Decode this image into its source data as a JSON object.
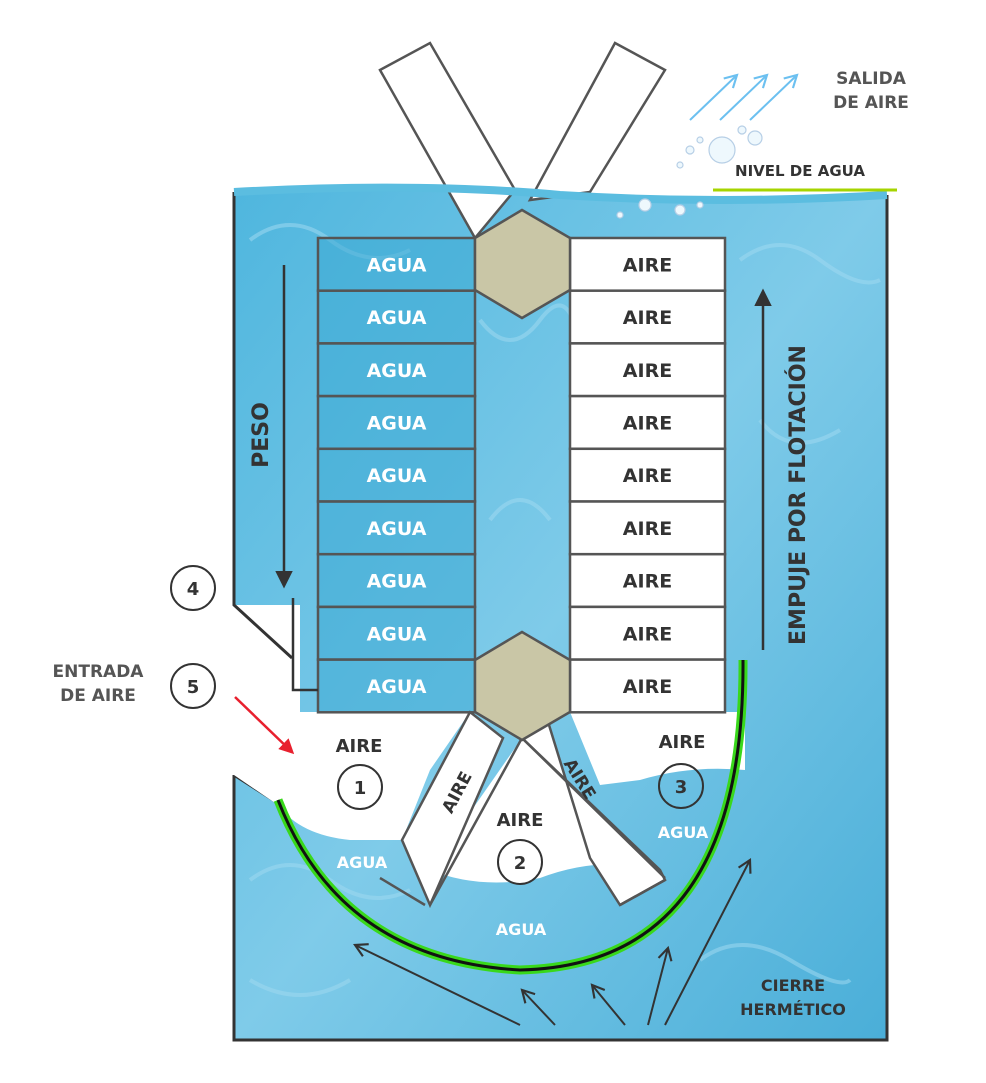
{
  "labels": {
    "salida_aire": [
      "SALIDA",
      "DE AIRE"
    ],
    "nivel_agua": "NIVEL DE AGUA",
    "peso": "PESO",
    "empuje": "EMPUJE POR FLOTACIÓN",
    "entrada_aire": [
      "ENTRADA",
      "DE AIRE"
    ],
    "cierre": [
      "CIERRE",
      "HERMÉTICO"
    ]
  },
  "left_cells": [
    "AGUA",
    "AGUA",
    "AGUA",
    "AGUA",
    "AGUA",
    "AGUA",
    "AGUA",
    "AGUA",
    "AGUA"
  ],
  "right_cells": [
    "AIRE",
    "AIRE",
    "AIRE",
    "AIRE",
    "AIRE",
    "AIRE",
    "AIRE",
    "AIRE",
    "AIRE"
  ],
  "chambers": {
    "c1": {
      "label": "AIRE",
      "number": "1"
    },
    "c2": {
      "label": "AIRE",
      "number": "2"
    },
    "c3": {
      "label": "AIRE",
      "number": "3"
    },
    "arm_left": "AIRE",
    "arm_right": "AIRE"
  },
  "water_labels": {
    "left": "AGUA",
    "center": "AGUA",
    "right": "AGUA"
  },
  "markers": [
    "4",
    "5"
  ],
  "colors": {
    "water": "#5bbde0",
    "water_dark": "#3da9d3",
    "hexagon": "#c9c6a6",
    "seal": "#39d81b",
    "level_line": "#a6d400",
    "air_arrow": "#6cc0f0",
    "entry_arrow": "#e8202e",
    "outline": "#555555"
  }
}
